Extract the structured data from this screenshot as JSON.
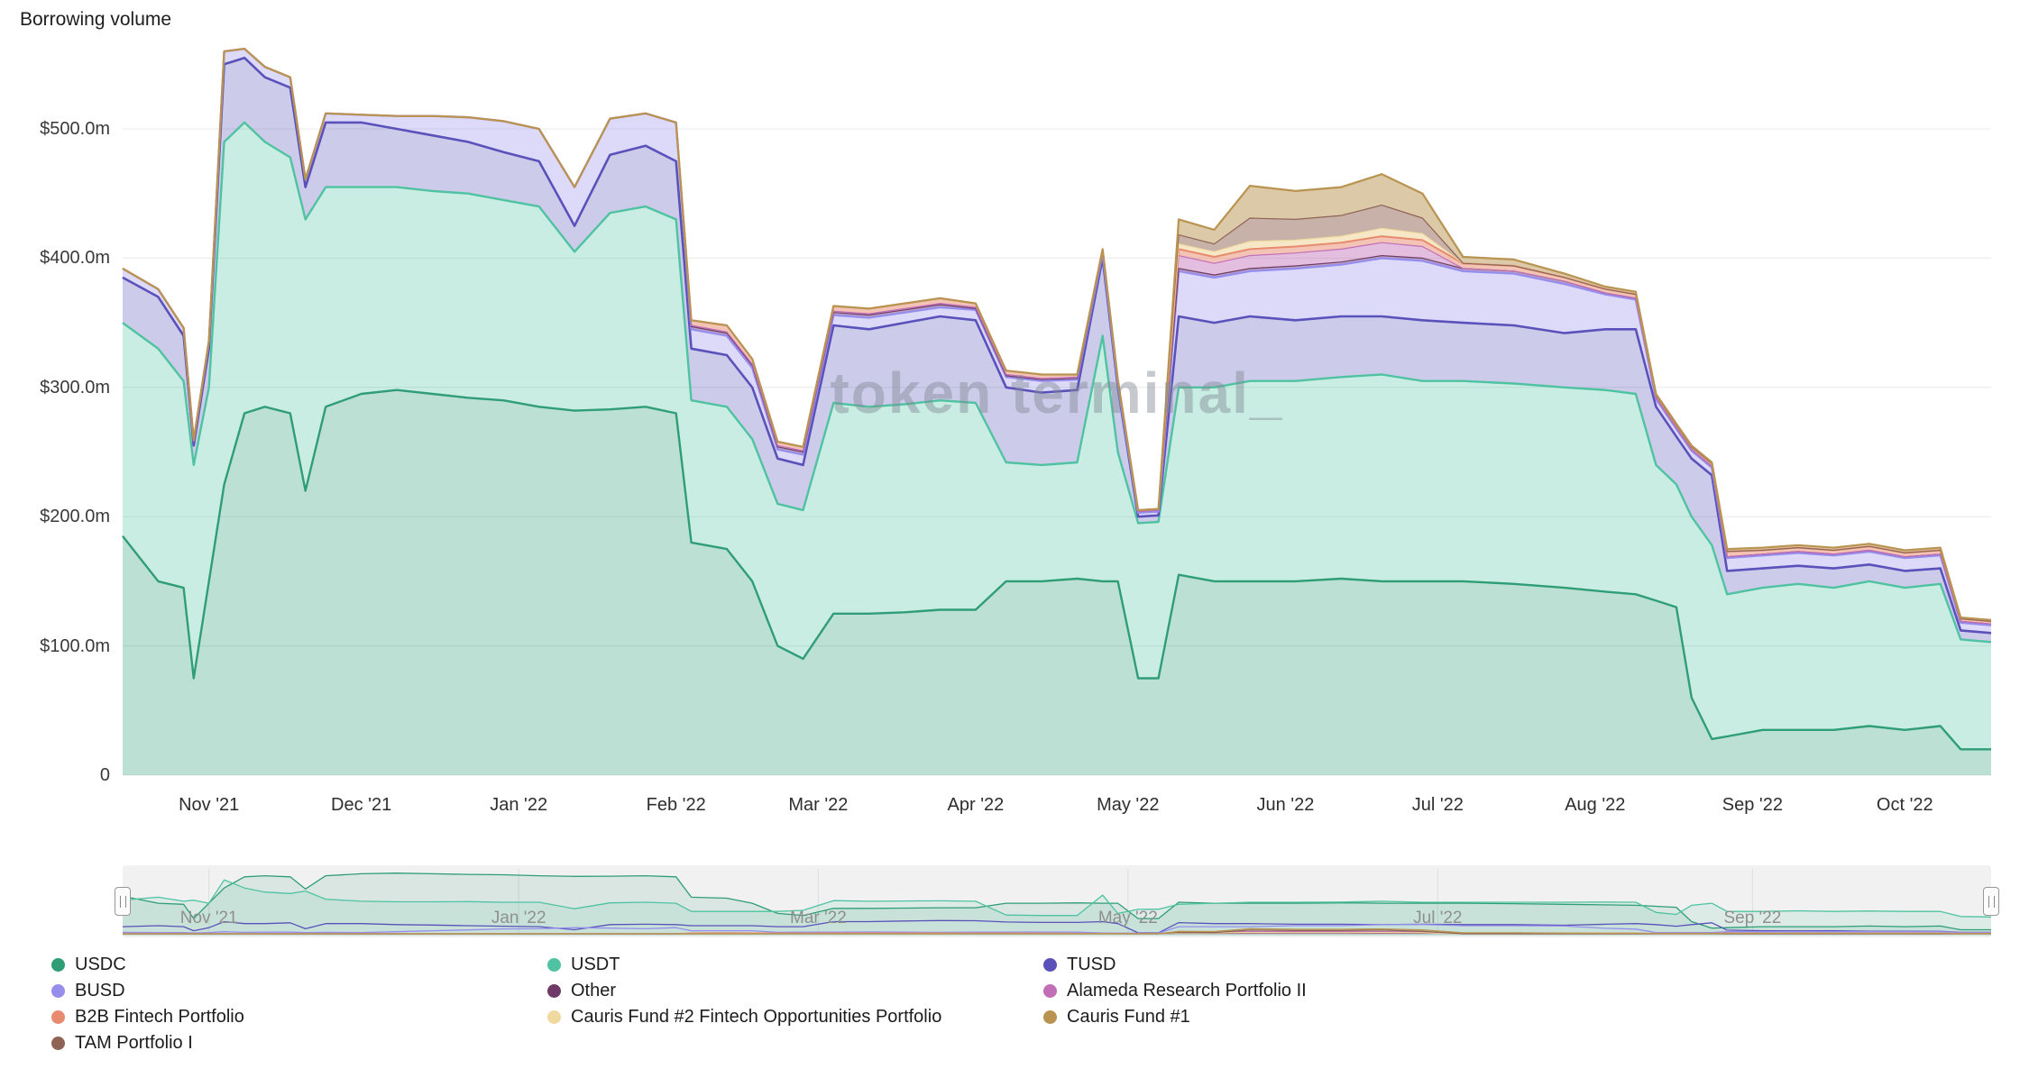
{
  "page": {
    "title": "Borrowing volume",
    "watermark": "token terminal_"
  },
  "chart_data": {
    "type": "area",
    "stacked": true,
    "title": "Borrowing volume",
    "unit": "USD millions",
    "grid": "horizontal",
    "legend_position": "bottom",
    "x_range": [
      0,
      368
    ],
    "x_epoch": "days starting mid-Oct 2021",
    "ylim": [
      0,
      560
    ],
    "y_ticks": [
      {
        "label": "0",
        "value": 0
      },
      {
        "label": "$100.0m",
        "value": 100
      },
      {
        "label": "$200.0m",
        "value": 200
      },
      {
        "label": "$300.0m",
        "value": 300
      },
      {
        "label": "$400.0m",
        "value": 400
      },
      {
        "label": "$500.0m",
        "value": 500
      }
    ],
    "x_ticks": [
      {
        "label": "Nov '21",
        "day": 17
      },
      {
        "label": "Dec '21",
        "day": 47
      },
      {
        "label": "Jan '22",
        "day": 78
      },
      {
        "label": "Feb '22",
        "day": 109
      },
      {
        "label": "Mar '22",
        "day": 137
      },
      {
        "label": "Apr '22",
        "day": 168
      },
      {
        "label": "May '22",
        "day": 198
      },
      {
        "label": "Jun '22",
        "day": 229
      },
      {
        "label": "Jul '22",
        "day": 259
      },
      {
        "label": "Aug '22",
        "day": 290
      },
      {
        "label": "Sep '22",
        "day": 321
      },
      {
        "label": "Oct '22",
        "day": 351
      }
    ],
    "x_days": [
      0,
      7,
      12,
      14,
      17,
      20,
      24,
      28,
      33,
      36,
      40,
      47,
      54,
      61,
      68,
      75,
      82,
      89,
      96,
      103,
      109,
      112,
      119,
      124,
      129,
      134,
      140,
      147,
      154,
      161,
      168,
      174,
      181,
      188,
      193,
      196,
      200,
      204,
      208,
      215,
      222,
      231,
      240,
      248,
      256,
      264,
      274,
      284,
      292,
      298,
      302,
      306,
      309,
      313,
      316,
      323,
      330,
      337,
      344,
      351,
      358,
      362,
      368
    ],
    "series": [
      {
        "name": "USDC",
        "color": "#2f9e76",
        "fill_opacity": 0.32,
        "line_width": 2.4,
        "values": [
          185,
          150,
          145,
          75,
          150,
          225,
          280,
          285,
          280,
          220,
          285,
          295,
          298,
          295,
          292,
          290,
          285,
          282,
          283,
          285,
          280,
          180,
          175,
          150,
          100,
          90,
          125,
          125,
          126,
          128,
          128,
          150,
          150,
          152,
          150,
          150,
          75,
          75,
          155,
          150,
          150,
          150,
          152,
          150,
          150,
          150,
          148,
          145,
          142,
          140,
          135,
          130,
          60,
          28,
          30,
          35,
          35,
          35,
          38,
          35,
          38,
          20,
          20
        ]
      },
      {
        "name": "USDT",
        "color": "#4fc3a1",
        "fill_opacity": 0.3,
        "line_width": 2.4,
        "values": [
          165,
          180,
          160,
          165,
          150,
          265,
          225,
          205,
          198,
          210,
          170,
          160,
          157,
          157,
          158,
          155,
          155,
          123,
          152,
          155,
          150,
          110,
          110,
          110,
          110,
          115,
          163,
          160,
          161,
          162,
          160,
          92,
          90,
          90,
          190,
          100,
          120,
          121,
          145,
          150,
          155,
          155,
          156,
          160,
          155,
          155,
          155,
          155,
          156,
          155,
          105,
          95,
          140,
          150,
          110,
          110,
          113,
          110,
          112,
          110,
          110,
          85,
          83
        ]
      },
      {
        "name": "TUSD",
        "color": "#5a52ba",
        "fill_opacity": 0.3,
        "line_width": 2.6,
        "values": [
          35,
          40,
          35,
          15,
          30,
          60,
          50,
          50,
          54,
          25,
          50,
          50,
          45,
          43,
          40,
          37,
          35,
          20,
          45,
          47,
          45,
          40,
          40,
          40,
          35,
          35,
          60,
          60,
          63,
          65,
          64,
          58,
          56,
          56,
          60,
          50,
          5,
          5,
          55,
          50,
          50,
          47,
          47,
          45,
          47,
          45,
          45,
          42,
          47,
          50,
          45,
          37,
          45,
          54,
          18,
          15,
          14,
          15,
          13,
          13,
          12,
          7,
          7
        ]
      },
      {
        "name": "BUSD",
        "color": "#968ded",
        "fill_opacity": 0.32,
        "line_width": 2.4,
        "values": [
          7,
          6,
          6,
          4,
          6,
          10,
          7,
          8,
          8,
          6,
          7,
          6,
          10,
          15,
          19,
          24,
          25,
          30,
          28,
          25,
          30,
          15,
          15,
          15,
          7,
          8,
          8,
          9,
          8,
          7,
          8,
          8,
          9,
          8,
          4,
          3,
          3,
          3,
          35,
          35,
          35,
          40,
          40,
          45,
          46,
          40,
          40,
          38,
          27,
          23,
          6,
          6,
          6,
          6,
          10,
          10,
          10,
          10,
          10,
          10,
          10,
          6,
          6
        ]
      },
      {
        "name": "Other",
        "color": "#6f3a68",
        "fill_opacity": 0.45,
        "line_width": 1.2,
        "values": [
          0,
          0,
          0,
          0,
          0,
          0,
          0,
          0,
          0,
          0,
          0,
          0,
          0,
          0,
          0,
          0,
          0,
          0,
          0,
          0,
          0,
          2,
          2,
          2,
          2,
          2,
          2,
          2,
          2,
          2,
          1,
          1,
          1,
          1,
          1,
          1,
          1,
          1,
          2,
          2,
          2,
          2,
          2,
          2,
          2,
          2,
          2,
          2,
          1,
          1,
          1,
          1,
          1,
          1,
          1,
          1,
          1,
          1,
          1,
          1,
          1,
          1,
          1
        ]
      },
      {
        "name": "Alameda Research Portfolio II",
        "color": "#c26eb6",
        "fill_opacity": 0.45,
        "line_width": 1.2,
        "values": [
          0,
          0,
          0,
          0,
          0,
          0,
          0,
          0,
          0,
          0,
          0,
          0,
          0,
          0,
          0,
          0,
          0,
          0,
          0,
          0,
          0,
          1,
          1,
          1,
          1,
          1,
          1,
          1,
          1,
          1,
          1,
          1,
          1,
          1,
          1,
          1,
          0,
          0,
          10,
          9,
          10,
          10,
          10,
          10,
          9,
          0,
          0,
          0,
          0,
          0,
          0,
          0,
          0,
          0,
          0,
          0,
          0,
          0,
          0,
          0,
          0,
          0,
          0
        ]
      },
      {
        "name": "B2B Fintech Portfolio",
        "color": "#e88a6d",
        "fill_opacity": 0.5,
        "line_width": 2.0,
        "values": [
          0,
          0,
          0,
          0,
          0,
          0,
          0,
          0,
          0,
          0,
          0,
          0,
          0,
          0,
          0,
          0,
          0,
          0,
          0,
          0,
          0,
          4,
          5,
          4,
          3,
          3,
          4,
          4,
          4,
          4,
          3,
          3,
          3,
          2,
          1,
          1,
          1,
          1,
          5,
          5,
          5,
          5,
          5,
          5,
          5,
          4,
          4,
          3,
          3,
          3,
          2,
          2,
          2,
          2,
          4,
          3,
          3,
          3,
          3,
          3,
          3,
          2,
          2
        ]
      },
      {
        "name": "Cauris Fund #2 Fintech Opportunities Portfolio",
        "color": "#f0d9a0",
        "fill_opacity": 0.6,
        "line_width": 1.2,
        "values": [
          0,
          0,
          0,
          0,
          0,
          0,
          0,
          0,
          0,
          0,
          0,
          0,
          0,
          0,
          0,
          0,
          0,
          0,
          0,
          0,
          0,
          0,
          0,
          0,
          0,
          0,
          0,
          0,
          0,
          0,
          0,
          0,
          0,
          0,
          0,
          0,
          0,
          0,
          4,
          4,
          6,
          5,
          5,
          6,
          5,
          0,
          0,
          0,
          0,
          0,
          0,
          0,
          0,
          0,
          0,
          0,
          0,
          0,
          0,
          0,
          0,
          0,
          0
        ]
      },
      {
        "name": "TAM Portfolio I",
        "color": "#8f6354",
        "fill_opacity": 0.5,
        "line_width": 1.2,
        "values": [
          0,
          0,
          0,
          0,
          0,
          0,
          0,
          0,
          0,
          0,
          0,
          0,
          0,
          0,
          0,
          0,
          0,
          0,
          0,
          0,
          0,
          0,
          0,
          0,
          0,
          0,
          0,
          0,
          0,
          0,
          0,
          0,
          0,
          0,
          0,
          0,
          0,
          0,
          7,
          6,
          18,
          16,
          16,
          18,
          12,
          0,
          0,
          0,
          0,
          0,
          0,
          0,
          0,
          0,
          0,
          0,
          0,
          0,
          0,
          0,
          0,
          0,
          0
        ]
      },
      {
        "name": "Cauris Fund #1",
        "color": "#b99350",
        "fill_opacity": 0.5,
        "line_width": 2.2,
        "values": [
          0,
          0,
          0,
          0,
          0,
          0,
          0,
          0,
          0,
          0,
          0,
          0,
          0,
          0,
          0,
          0,
          0,
          0,
          0,
          0,
          0,
          0,
          0,
          0,
          0,
          0,
          0,
          0,
          0,
          0,
          0,
          0,
          0,
          0,
          0,
          0,
          0,
          0,
          12,
          11,
          25,
          22,
          22,
          24,
          19,
          5,
          5,
          3,
          2,
          2,
          1,
          1,
          1,
          1,
          2,
          2,
          2,
          2,
          2,
          2,
          2,
          1,
          1
        ]
      }
    ],
    "legend_order": [
      "USDC",
      "USDT",
      "TUSD",
      "BUSD",
      "Other",
      "Alameda Research Portfolio II",
      "B2B Fintech Portfolio",
      "Cauris Fund #2 Fintech Opportunities Portfolio",
      "Cauris Fund #1",
      "TAM Portfolio I"
    ]
  },
  "minimap": {
    "ymax": 310,
    "labels": [
      {
        "label": "Nov '21",
        "day": 17
      },
      {
        "label": "Jan '22",
        "day": 78
      },
      {
        "label": "Mar '22",
        "day": 137
      },
      {
        "label": "May '22",
        "day": 198
      },
      {
        "label": "Jul '22",
        "day": 259
      },
      {
        "label": "Sep '22",
        "day": 321
      }
    ]
  }
}
